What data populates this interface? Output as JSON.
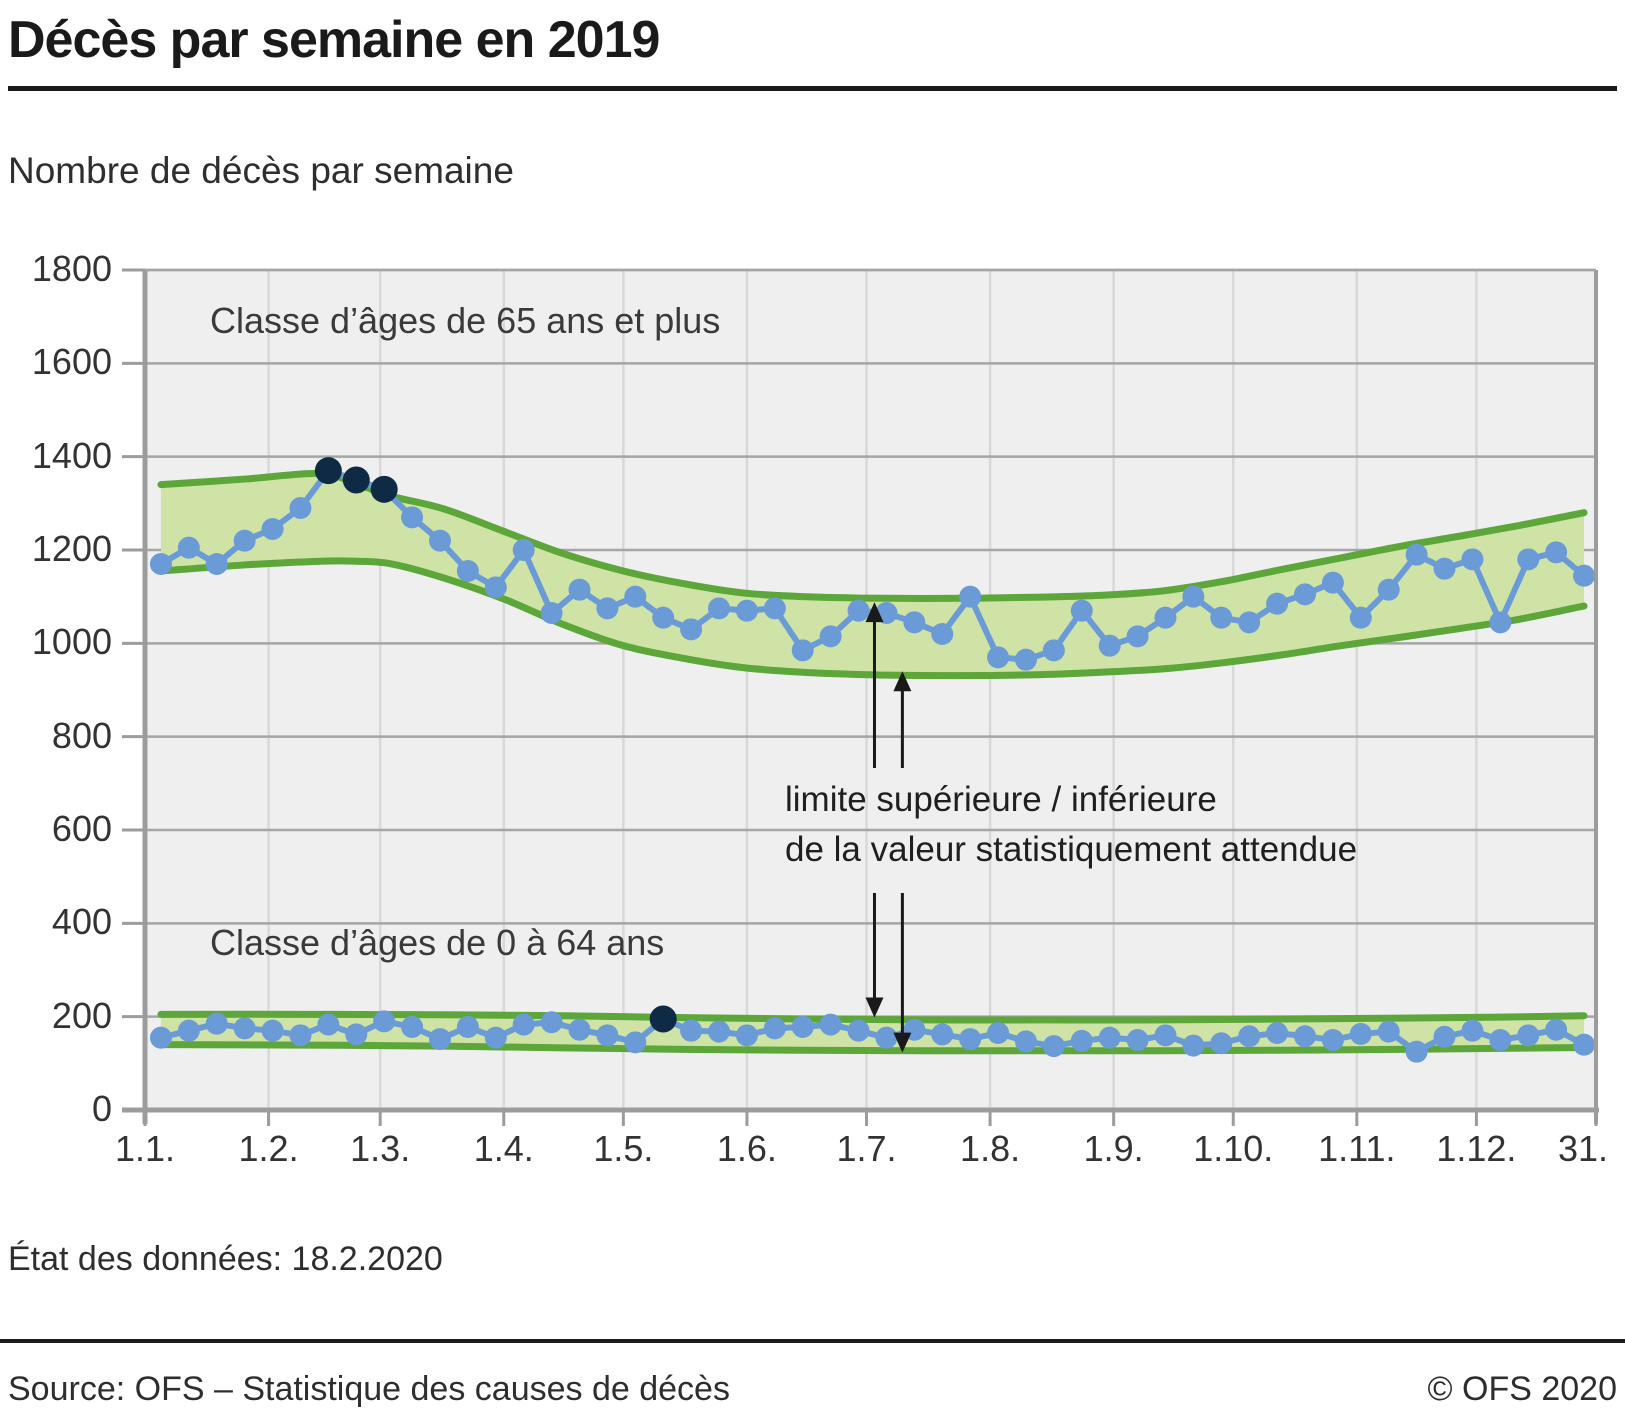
{
  "header": {
    "title": "Décès par semaine en 2019",
    "subtitle": "Nombre de décès par semaine"
  },
  "footer": {
    "data_state": "État des données: 18.2.2020",
    "source": "Source: OFS – Statistique des causes de décès",
    "copyright": "© OFS 2020"
  },
  "chart_data": {
    "type": "line",
    "title": "Décès par semaine en 2019",
    "ylabel": "Nombre de décès par semaine",
    "grid": true,
    "y_axis": {
      "min": 0,
      "max": 1800,
      "step": 200,
      "tick_values": [
        0,
        200,
        400,
        600,
        800,
        1000,
        1200,
        1400,
        1600,
        1800
      ]
    },
    "x_axis": {
      "tick_labels": [
        "1.1.",
        "1.2.",
        "1.3.",
        "1.4.",
        "1.5.",
        "1.6.",
        "1.7.",
        "1.8.",
        "1.9.",
        "1.10.",
        "1.11.",
        "1.12.",
        "31."
      ],
      "tick_days": [
        0,
        31,
        59,
        90,
        120,
        151,
        181,
        212,
        243,
        273,
        304,
        334,
        364
      ],
      "days_total": 364
    },
    "annotations": {
      "age_65": "Classe d’âges de 65 ans et plus",
      "age_0_64": "Classe d’âges de 0 à 64 ans",
      "limit_line1": "limite supérieure / inférieure",
      "limit_line2": "de la valeur statistiquement attendue"
    },
    "series": [
      {
        "name": "Classe d’âges de 65 ans et plus",
        "first_day": 4,
        "interval_days": 7,
        "values": [
          1170,
          1205,
          1170,
          1220,
          1245,
          1290,
          1370,
          1350,
          1330,
          1270,
          1220,
          1155,
          1120,
          1200,
          1065,
          1115,
          1075,
          1100,
          1055,
          1030,
          1075,
          1070,
          1075,
          985,
          1015,
          1070,
          1065,
          1045,
          1020,
          1100,
          970,
          965,
          985,
          1070,
          995,
          1015,
          1055,
          1100,
          1055,
          1045,
          1085,
          1105,
          1130,
          1055,
          1115,
          1190,
          1160,
          1180,
          1045,
          1180,
          1195,
          1145
        ],
        "outlier_indexes": [
          6,
          7,
          8
        ],
        "band": {
          "days": [
            4,
            25,
            44,
            53,
            62,
            75,
            90,
            105,
            120,
            135,
            150,
            165,
            180,
            195,
            210,
            225,
            240,
            255,
            270,
            285,
            300,
            315,
            330,
            345,
            361
          ],
          "upper": [
            1340,
            1352,
            1364,
            1342,
            1315,
            1288,
            1240,
            1192,
            1155,
            1128,
            1108,
            1100,
            1097,
            1096,
            1097,
            1099,
            1103,
            1112,
            1132,
            1158,
            1183,
            1208,
            1230,
            1253,
            1280
          ],
          "lower": [
            1155,
            1168,
            1176,
            1176,
            1170,
            1140,
            1095,
            1040,
            995,
            968,
            948,
            938,
            933,
            931,
            931,
            933,
            938,
            945,
            958,
            975,
            995,
            1013,
            1032,
            1052,
            1080
          ]
        }
      },
      {
        "name": "Classe d’âges de 0 à 64 ans",
        "first_day": 4,
        "interval_days": 7,
        "values": [
          155,
          170,
          185,
          175,
          170,
          160,
          183,
          162,
          190,
          178,
          152,
          178,
          155,
          183,
          188,
          172,
          160,
          145,
          195,
          170,
          168,
          160,
          175,
          178,
          183,
          170,
          155,
          172,
          162,
          152,
          165,
          147,
          137,
          148,
          155,
          150,
          160,
          138,
          143,
          158,
          165,
          158,
          150,
          163,
          168,
          125,
          157,
          170,
          150,
          160,
          172,
          140
        ],
        "outlier_indexes": [
          18
        ],
        "band": {
          "days": [
            4,
            40,
            75,
            105,
            135,
            165,
            195,
            225,
            255,
            285,
            315,
            340,
            361
          ],
          "upper": [
            205,
            205,
            204,
            202,
            198,
            195,
            193,
            193,
            193,
            195,
            197,
            199,
            202
          ],
          "lower": [
            140,
            139,
            137,
            133,
            130,
            128,
            127,
            127,
            127,
            128,
            130,
            132,
            134
          ]
        }
      }
    ],
    "colors": {
      "band_fill": "#cfe3a6",
      "band_stroke": "#5ca63a",
      "series_blue": "#6b9bd7",
      "outlier_navy": "#0e2a44",
      "plot_bg": "#efefef",
      "grid_major": "#a5a5a5",
      "grid_minor": "#d8d8d8",
      "axis": "#9c9c9c",
      "arrow": "#1a1a1a"
    }
  }
}
